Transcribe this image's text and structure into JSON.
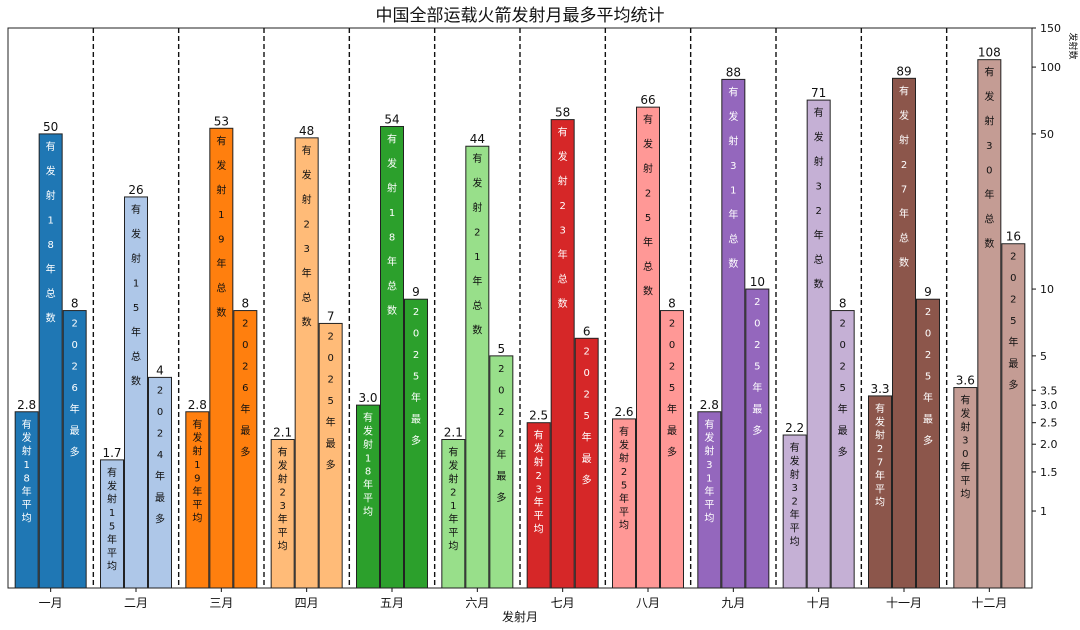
{
  "chart_data": {
    "type": "bar",
    "title": "中国全部运载火箭发射月最多平均统计",
    "xlabel": "发射月",
    "ylabel": "发射数",
    "yscale": "log",
    "ylim": [
      0.45,
      150
    ],
    "yticks": [
      1,
      1.5,
      2.0,
      2.5,
      3.0,
      3.5,
      5,
      10,
      50,
      100,
      150
    ],
    "ytick_labels": [
      "1",
      "1.5",
      "2.0",
      "2.5",
      "3.0",
      "3.5",
      "5",
      "10",
      "50",
      "100",
      "150"
    ],
    "categories": [
      "一月",
      "二月",
      "三月",
      "四月",
      "五月",
      "六月",
      "七月",
      "八月",
      "九月",
      "十月",
      "十一月",
      "十二月"
    ],
    "series": [
      {
        "name": "平均",
        "values": [
          2.8,
          1.7,
          2.8,
          2.1,
          3.0,
          2.1,
          2.5,
          2.6,
          2.8,
          2.2,
          3.3,
          3.6
        ],
        "value_labels": [
          "2.8",
          "1.7",
          "2.8",
          "2.1",
          "3.0",
          "2.1",
          "2.5",
          "2.6",
          "2.8",
          "2.2",
          "3.3",
          "3.6"
        ],
        "inner_texts": [
          "有发射18年平均",
          "有发射15年平均",
          "有发射19年平均",
          "有发射23年平均",
          "有发射18年平均",
          "有发射21年平均",
          "有发射23年平均",
          "有发射25年平均",
          "有发射31年平均",
          "有发射32年平均",
          "有发射27年平均",
          "有发射30年平均"
        ]
      },
      {
        "name": "总数",
        "values": [
          50,
          26,
          53,
          48,
          54,
          44,
          58,
          66,
          88,
          71,
          89,
          108
        ],
        "value_labels": [
          "50",
          "26",
          "53",
          "48",
          "54",
          "44",
          "58",
          "66",
          "88",
          "71",
          "89",
          "108"
        ],
        "inner_texts": [
          "有发射18年总数",
          "有发射15年总数",
          "有发射19年总数",
          "有发射23年总数",
          "有发射18年总数",
          "有发射21年总数",
          "有发射23年总数",
          "有发射25年总数",
          "有发射31年总数",
          "有发射32年总数",
          "有发射27年总数",
          "有发射30年总数"
        ]
      },
      {
        "name": "最多",
        "values": [
          8,
          4,
          8,
          7,
          9,
          5,
          6,
          8,
          10,
          8,
          9,
          16
        ],
        "value_labels": [
          "8",
          "4",
          "8",
          "7",
          "9",
          "5",
          "6",
          "8",
          "10",
          "8",
          "9",
          "16"
        ],
        "inner_texts": [
          "2026年最多",
          "2024年最多",
          "2026年最多",
          "2025年最多",
          "2025年最多",
          "2022年最多",
          "2025年最多",
          "2025年最多",
          "2025年最多",
          "2025年最多",
          "2025年最多",
          "2025年最多"
        ]
      }
    ],
    "colors": [
      [
        "#1f77b4",
        "#1f77b4",
        "#1f77b4"
      ],
      [
        "#aec7e8",
        "#aec7e8",
        "#aec7e8"
      ],
      [
        "#ff7f0e",
        "#ff7f0e",
        "#ff7f0e"
      ],
      [
        "#ffbb78",
        "#ffbb78",
        "#ffbb78"
      ],
      [
        "#2ca02c",
        "#2ca02c",
        "#2ca02c"
      ],
      [
        "#98df8a",
        "#98df8a",
        "#98df8a"
      ],
      [
        "#d62728",
        "#d62728",
        "#d62728"
      ],
      [
        "#ff9896",
        "#ff9896",
        "#ff9896"
      ],
      [
        "#9467bd",
        "#9467bd",
        "#9467bd"
      ],
      [
        "#c5b0d5",
        "#c5b0d5",
        "#c5b0d5"
      ],
      [
        "#8c564b",
        "#8c564b",
        "#8c564b"
      ],
      [
        "#c49c94",
        "#c49c94",
        "#c49c94"
      ]
    ],
    "inner_text_colors": [
      "#ffffff",
      "#111111",
      "#111111",
      "#111111",
      "#ffffff",
      "#111111",
      "#ffffff",
      "#111111",
      "#ffffff",
      "#111111",
      "#ffffff",
      "#111111"
    ],
    "bar_edge_color": "#222222",
    "separator_style": "dashed",
    "legend": "none"
  }
}
